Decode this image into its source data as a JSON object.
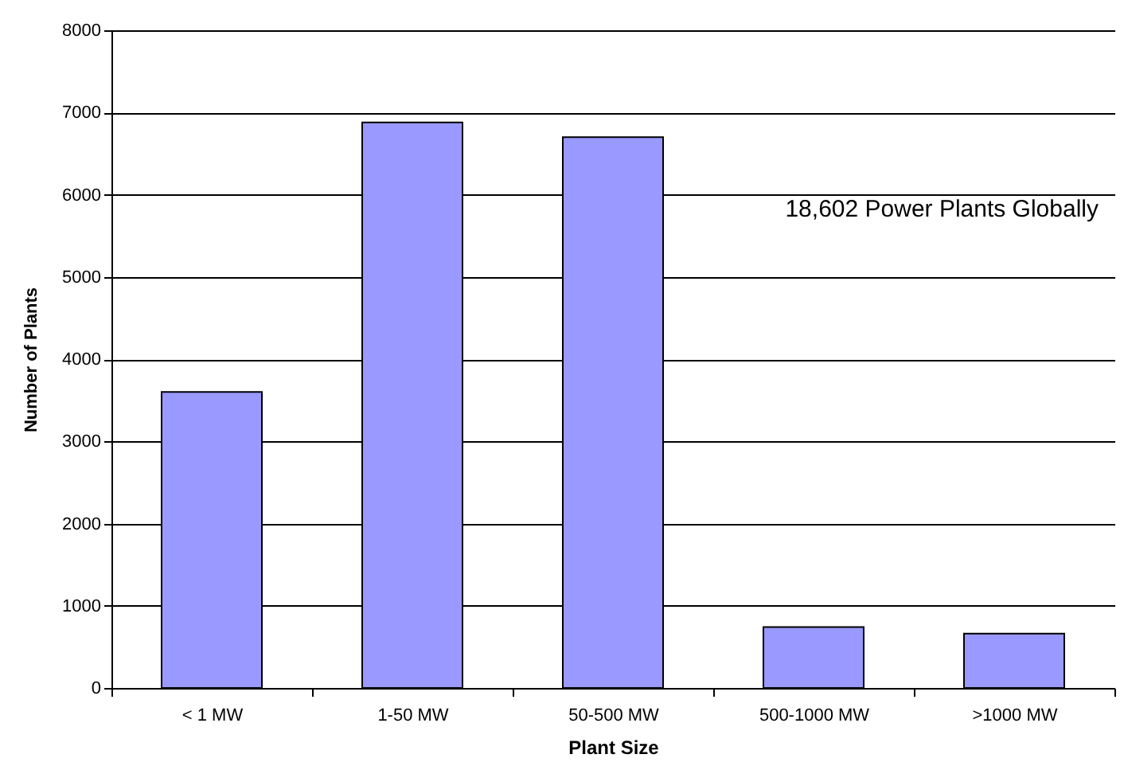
{
  "chart_data": {
    "type": "bar",
    "xlabel": "Plant Size",
    "ylabel": "Number of Plants",
    "categories": [
      "< 1 MW",
      "1-50 MW",
      "50-500 MW",
      "500-1000 MW",
      ">1000 MW"
    ],
    "values": [
      3600,
      6880,
      6700,
      740,
      660
    ],
    "color": "#9999ff",
    "ylim": [
      0,
      8000
    ],
    "yticks": [
      0,
      1000,
      2000,
      3000,
      4000,
      5000,
      6000,
      7000,
      8000
    ],
    "grid": "y",
    "annotations": [
      "18,602 Power Plants Globally"
    ]
  }
}
